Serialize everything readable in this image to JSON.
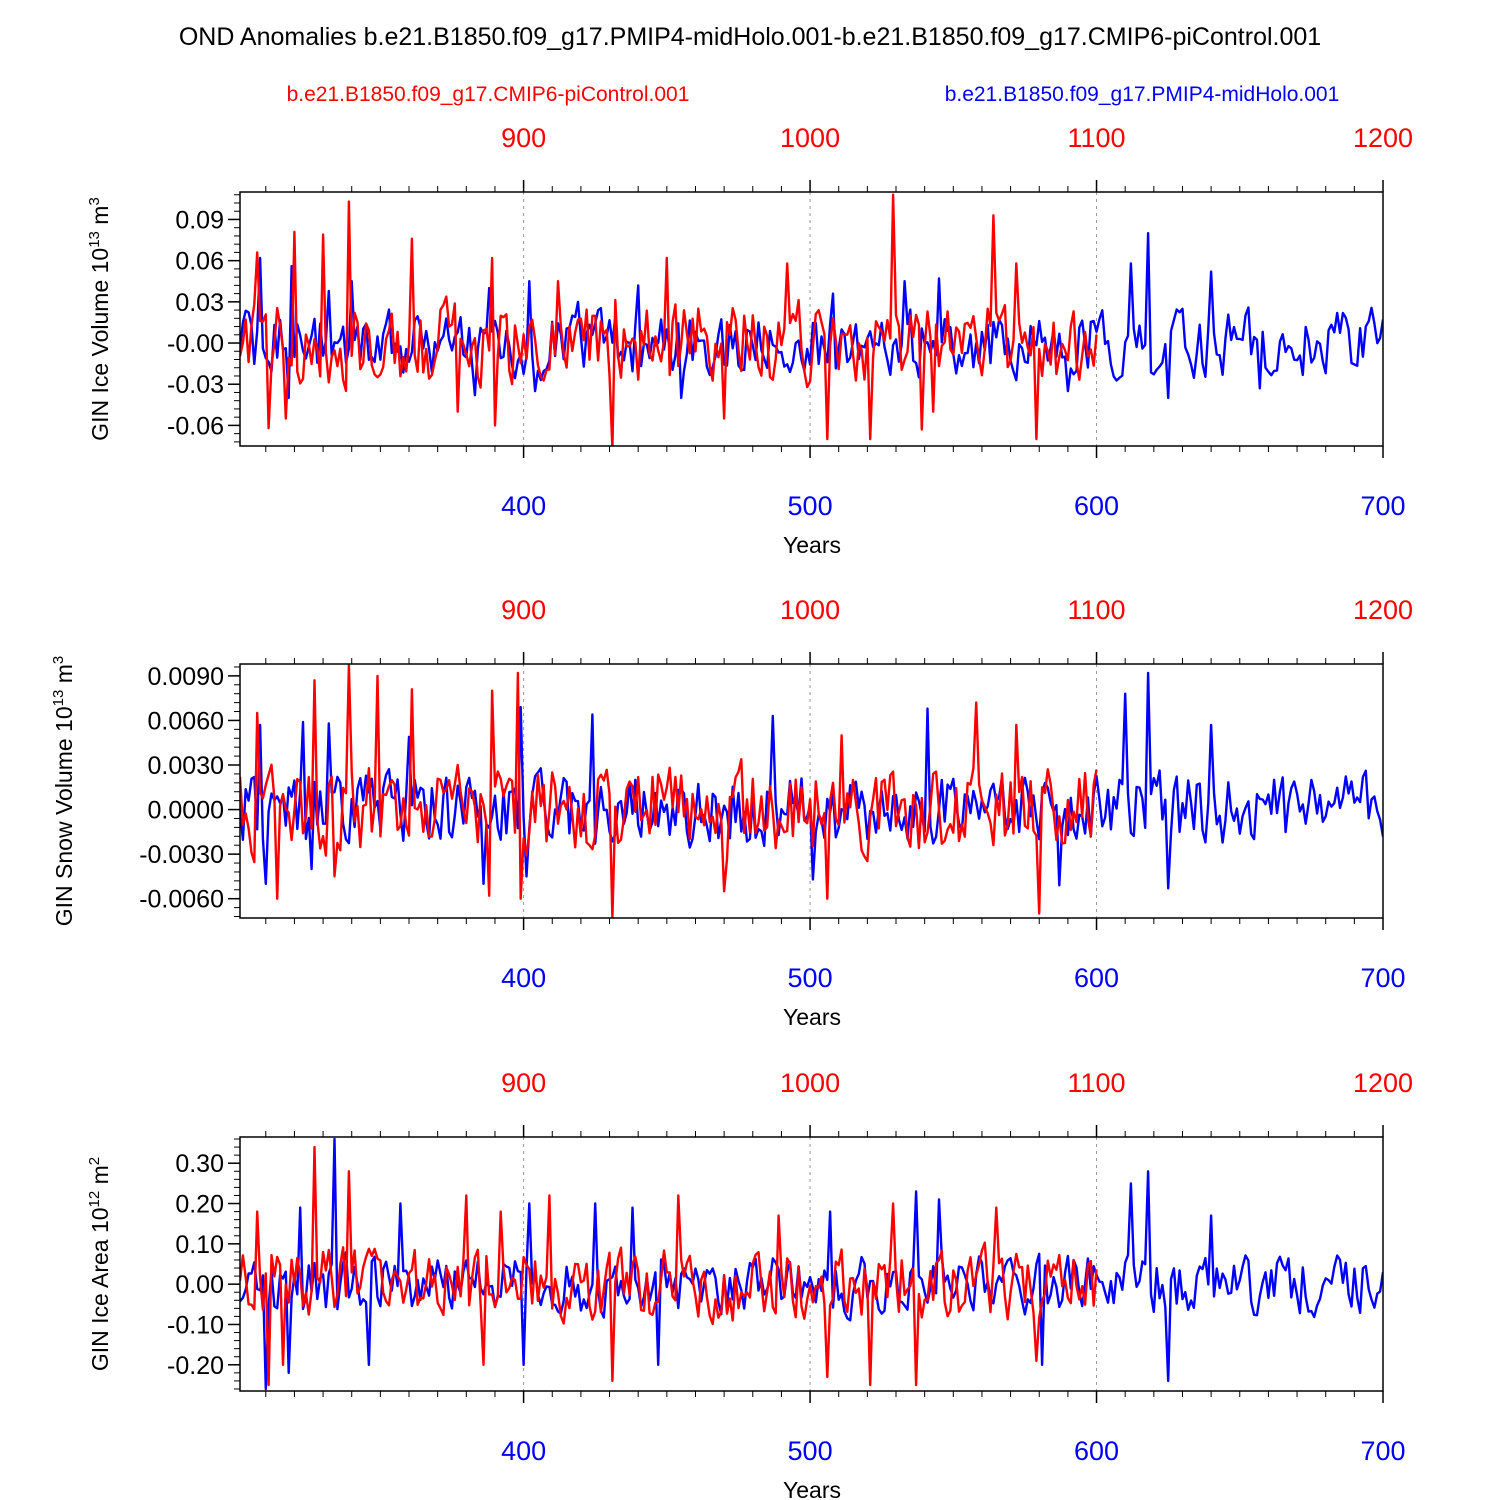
{
  "figure": {
    "title": "OND Anomalies b.e21.B1850.f09_g17.PMIP4-midHolo.001-b.e21.B1850.f09_g17.CMIP6-piControl.001",
    "legend_red": "b.e21.B1850.f09_g17.CMIP6-piControl.001",
    "legend_blue": "b.e21.B1850.f09_g17.PMIP4-midHolo.001"
  },
  "colors": {
    "red": "#ff0000",
    "blue": "#0000ff",
    "axis": "#000000",
    "grid": "#999999"
  },
  "chart_data": [
    {
      "type": "line",
      "ylabel_main": "GIN Ice Volume 10",
      "ylabel_exp": "13",
      "ylabel_unit": " m",
      "ylabel_unit_exp": "3",
      "xlabel": "Years",
      "bottom_xlim": [
        301,
        700
      ],
      "bottom_ticks": [
        "400",
        "500",
        "600",
        "700"
      ],
      "top_ticks": [
        "900",
        "1000",
        "1100",
        "1200"
      ],
      "ylim": [
        -0.075,
        0.11
      ],
      "ytick_values": [
        0.09,
        0.06,
        0.03,
        0.0,
        -0.03,
        -0.06
      ],
      "ytick_labels": [
        "0.09",
        "0.06",
        "0.03",
        "-0.00",
        "-0.03",
        "-0.06"
      ],
      "series": [
        {
          "name": "b.e21.B1850.f09_g17.PMIP4-midHolo.001",
          "color": "blue",
          "x_start": 301,
          "amp": 0.021,
          "spikes": [
            [
              308,
              0.062
            ],
            [
              319,
              0.056
            ],
            [
              332,
              0.038
            ],
            [
              340,
              0.045
            ],
            [
              388,
              0.04
            ],
            [
              402,
              0.045
            ],
            [
              419,
              0.03
            ],
            [
              440,
              0.042
            ],
            [
              508,
              0.036
            ],
            [
              533,
              0.045
            ],
            [
              545,
              0.047
            ],
            [
              612,
              0.058
            ],
            [
              618,
              0.08
            ],
            [
              640,
              0.052
            ]
          ],
          "dips": [
            [
              318,
              -0.04
            ],
            [
              383,
              -0.038
            ],
            [
              404,
              -0.035
            ],
            [
              455,
              -0.04
            ],
            [
              590,
              -0.035
            ],
            [
              625,
              -0.04
            ],
            [
              657,
              -0.033
            ]
          ]
        },
        {
          "name": "b.e21.B1850.f09_g17.CMIP6-piControl.001",
          "color": "red",
          "x_start": 301,
          "x_end": 600,
          "amp": 0.027,
          "spikes": [
            [
              307,
              0.066
            ],
            [
              320,
              0.081
            ],
            [
              330,
              0.079
            ],
            [
              339,
              0.103
            ],
            [
              361,
              0.076
            ],
            [
              389,
              0.062
            ],
            [
              412,
              0.045
            ],
            [
              450,
              0.062
            ],
            [
              492,
              0.058
            ],
            [
              529,
              0.108
            ],
            [
              564,
              0.093
            ],
            [
              572,
              0.058
            ]
          ],
          "dips": [
            [
              311,
              -0.062
            ],
            [
              317,
              -0.055
            ],
            [
              377,
              -0.05
            ],
            [
              390,
              -0.06
            ],
            [
              431,
              -0.077
            ],
            [
              470,
              -0.055
            ],
            [
              506,
              -0.07
            ],
            [
              521,
              -0.07
            ],
            [
              539,
              -0.063
            ],
            [
              543,
              -0.05
            ],
            [
              579,
              -0.07
            ]
          ]
        }
      ]
    },
    {
      "type": "line",
      "ylabel_main": "GIN Snow Volume 10",
      "ylabel_exp": "13",
      "ylabel_unit": " m",
      "ylabel_unit_exp": "3",
      "xlabel": "Years",
      "bottom_xlim": [
        301,
        700
      ],
      "bottom_ticks": [
        "400",
        "500",
        "600",
        "700"
      ],
      "top_ticks": [
        "900",
        "1000",
        "1100",
        "1200"
      ],
      "ylim": [
        -0.0073,
        0.0098
      ],
      "ytick_values": [
        0.009,
        0.006,
        0.003,
        0.0,
        -0.003,
        -0.006
      ],
      "ytick_labels": [
        "0.0090",
        "0.0060",
        "0.0030",
        "0.0000",
        "-0.0030",
        "-0.0060"
      ],
      "series": [
        {
          "name": "b.e21.B1850.f09_g17.PMIP4-midHolo.001",
          "color": "blue",
          "x_start": 301,
          "amp": 0.0022,
          "spikes": [
            [
              308,
              0.0057
            ],
            [
              323,
              0.0059
            ],
            [
              332,
              0.0058
            ],
            [
              360,
              0.0049
            ],
            [
              399,
              0.0069
            ],
            [
              424,
              0.0064
            ],
            [
              487,
              0.0063
            ],
            [
              541,
              0.0068
            ],
            [
              610,
              0.0078
            ],
            [
              618,
              0.0092
            ],
            [
              640,
              0.0057
            ]
          ],
          "dips": [
            [
              310,
              -0.005
            ],
            [
              326,
              -0.004
            ],
            [
              386,
              -0.005
            ],
            [
              401,
              -0.0045
            ],
            [
              501,
              -0.0047
            ],
            [
              587,
              -0.0051
            ],
            [
              625,
              -0.0053
            ]
          ]
        },
        {
          "name": "b.e21.B1850.f09_g17.CMIP6-piControl.001",
          "color": "red",
          "x_start": 301,
          "x_end": 600,
          "amp": 0.0027,
          "spikes": [
            [
              307,
              0.0065
            ],
            [
              327,
              0.0087
            ],
            [
              339,
              0.0097
            ],
            [
              349,
              0.009
            ],
            [
              361,
              0.0081
            ],
            [
              389,
              0.008
            ],
            [
              398,
              0.0092
            ],
            [
              470,
              0.0052
            ],
            [
              511,
              0.005
            ],
            [
              558,
              0.0072
            ],
            [
              572,
              0.0057
            ]
          ],
          "dips": [
            [
              314,
              -0.006
            ],
            [
              334,
              -0.0045
            ],
            [
              388,
              -0.0058
            ],
            [
              399,
              -0.006
            ],
            [
              431,
              -0.0073
            ],
            [
              470,
              -0.0055
            ],
            [
              506,
              -0.006
            ],
            [
              580,
              -0.007
            ]
          ]
        }
      ]
    },
    {
      "type": "line",
      "ylabel_main": "GIN Ice Area 10",
      "ylabel_exp": "12",
      "ylabel_unit": " m",
      "ylabel_unit_exp": "2",
      "xlabel": "Years",
      "bottom_xlim": [
        301,
        700
      ],
      "bottom_ticks": [
        "400",
        "500",
        "600",
        "700"
      ],
      "top_ticks": [
        "900",
        "1000",
        "1100",
        "1200"
      ],
      "ylim": [
        -0.265,
        0.365
      ],
      "ytick_values": [
        0.3,
        0.2,
        0.1,
        0.0,
        -0.1,
        -0.2
      ],
      "ytick_labels": [
        "0.30",
        "0.20",
        "0.10",
        "0.00",
        "-0.10",
        "-0.20"
      ],
      "series": [
        {
          "name": "b.e21.B1850.f09_g17.PMIP4-midHolo.001",
          "color": "blue",
          "x_start": 301,
          "amp": 0.065,
          "spikes": [
            [
              322,
              0.19
            ],
            [
              334,
              0.36
            ],
            [
              357,
              0.2
            ],
            [
              402,
              0.2
            ],
            [
              425,
              0.2
            ],
            [
              438,
              0.19
            ],
            [
              507,
              0.18
            ],
            [
              537,
              0.23
            ],
            [
              545,
              0.21
            ],
            [
              612,
              0.25
            ],
            [
              618,
              0.28
            ],
            [
              640,
              0.17
            ]
          ],
          "dips": [
            [
              310,
              -0.26
            ],
            [
              318,
              -0.22
            ],
            [
              346,
              -0.2
            ],
            [
              400,
              -0.2
            ],
            [
              447,
              -0.2
            ],
            [
              581,
              -0.2
            ],
            [
              625,
              -0.24
            ]
          ]
        },
        {
          "name": "b.e21.B1850.f09_g17.CMIP6-piControl.001",
          "color": "red",
          "x_start": 301,
          "x_end": 600,
          "amp": 0.08,
          "spikes": [
            [
              307,
              0.18
            ],
            [
              327,
              0.34
            ],
            [
              339,
              0.28
            ],
            [
              380,
              0.22
            ],
            [
              392,
              0.18
            ],
            [
              409,
              0.22
            ],
            [
              454,
              0.22
            ],
            [
              489,
              0.17
            ],
            [
              529,
              0.2
            ],
            [
              565,
              0.19
            ]
          ],
          "dips": [
            [
              311,
              -0.25
            ],
            [
              316,
              -0.2
            ],
            [
              386,
              -0.2
            ],
            [
              431,
              -0.24
            ],
            [
              506,
              -0.23
            ],
            [
              521,
              -0.25
            ],
            [
              537,
              -0.25
            ],
            [
              579,
              -0.19
            ]
          ]
        }
      ]
    }
  ]
}
